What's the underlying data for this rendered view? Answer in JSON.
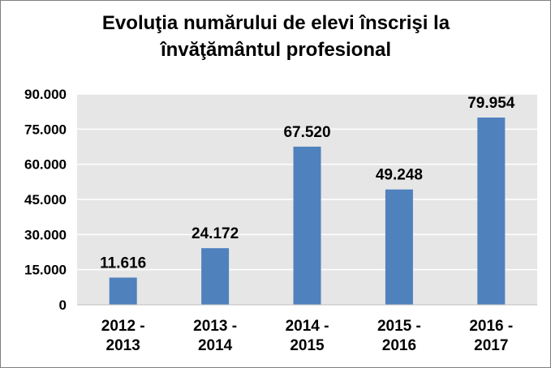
{
  "chart_data": {
    "type": "bar",
    "title_lines": [
      "Evoluţia numărului de elevi înscrişi la",
      "învăţământul profesional"
    ],
    "categories": [
      [
        "2012 -",
        "2013"
      ],
      [
        "2013 -",
        "2014"
      ],
      [
        "2014 -",
        "2015"
      ],
      [
        "2015 -",
        "2016"
      ],
      [
        "2016 -",
        "2017"
      ]
    ],
    "values": [
      11616,
      24172,
      67520,
      49248,
      79954
    ],
    "data_labels": [
      "11.616",
      "24.172",
      "67.520",
      "49.248",
      "79.954"
    ],
    "y_ticks": [
      {
        "value": 0,
        "label": "0"
      },
      {
        "value": 15000,
        "label": "15.000"
      },
      {
        "value": 30000,
        "label": "30.000"
      },
      {
        "value": 45000,
        "label": "45.000"
      },
      {
        "value": 60000,
        "label": "60.000"
      },
      {
        "value": 75000,
        "label": "75.000"
      },
      {
        "value": 90000,
        "label": "90.000"
      }
    ],
    "ylim": [
      0,
      90000
    ],
    "grid": true,
    "colors": {
      "bar": "#4f81bd",
      "plot_bg": "#e6e6e6",
      "grid": "#ffffff"
    }
  }
}
